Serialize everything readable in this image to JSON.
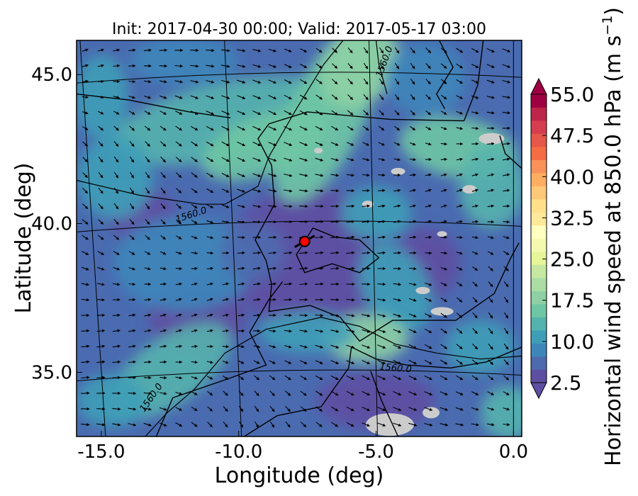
{
  "chart_data": {
    "type": "heatmap",
    "title": "Init: 2017-04-30 00:00; Valid: 2017-05-17 03:00",
    "xlabel": "Longitude (deg)",
    "ylabel": "Latitude (deg)",
    "xlim": [
      -15.9,
      0.3
    ],
    "ylim": [
      32.8,
      46.1
    ],
    "xticks": [
      {
        "value": -15,
        "label": "-15.0"
      },
      {
        "value": -10,
        "label": "-10.0"
      },
      {
        "value": -5,
        "label": "-5.0"
      },
      {
        "value": 0,
        "label": "0.0"
      }
    ],
    "yticks": [
      {
        "value": 45,
        "label": "45.0"
      },
      {
        "value": 40,
        "label": "40.0"
      },
      {
        "value": 35,
        "label": "35.0"
      }
    ],
    "colorbar": {
      "label": "Horizontal wind speed at 850.0 hPa (m s",
      "unit_exponent": "−1",
      "label_close": ")",
      "min": 2.5,
      "max": 55.0,
      "step": 2.5,
      "extend": "both",
      "ticks": [
        "2.5",
        "10.0",
        "17.5",
        "25.0",
        "32.5",
        "40.0",
        "47.5",
        "55.0"
      ],
      "colormap": "Spectral_r",
      "colors": [
        "#5e4fa2",
        "#4d6aae",
        "#3d86ba",
        "#3f9eb7",
        "#55b3ad",
        "#6fc6a4",
        "#8ed0a4",
        "#abdda4",
        "#c6e8a0",
        "#e6f598",
        "#f4f9b0",
        "#ffffbf",
        "#fee89a",
        "#fee08b",
        "#fdc877",
        "#fdae61",
        "#f8925a",
        "#f46d43",
        "#e55749",
        "#d53e4f",
        "#bd2648",
        "#9e0142"
      ]
    },
    "contours": [
      {
        "label": "1560.0"
      },
      {
        "label": "1560.0"
      },
      {
        "label": "1560.0"
      },
      {
        "label": "1560.0"
      }
    ],
    "marker": {
      "lon": -7.6,
      "lat": 39.35,
      "color": "#ff0000"
    },
    "missing_color": "#cccccc",
    "grid": true,
    "vectors": "wind arrows at 850 hPa"
  }
}
